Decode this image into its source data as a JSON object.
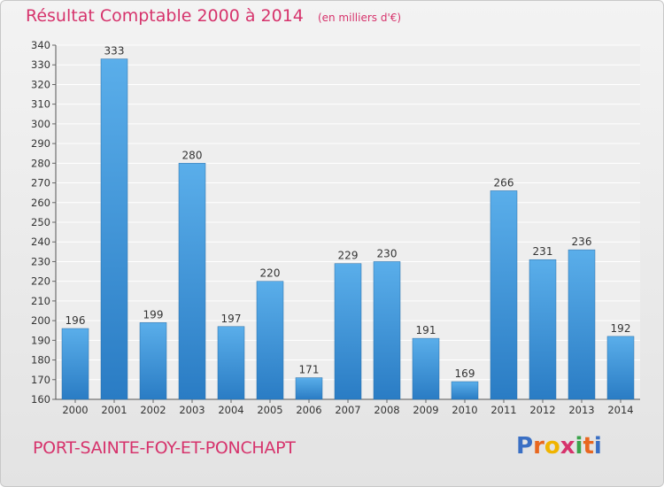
{
  "chart_data": {
    "type": "bar",
    "title": "Résultat Comptable 2000 à 2014",
    "subtitle": "(en milliers d'€)",
    "categories": [
      "2000",
      "2001",
      "2002",
      "2003",
      "2004",
      "2005",
      "2006",
      "2007",
      "2008",
      "2009",
      "2010",
      "2011",
      "2012",
      "2013",
      "2014"
    ],
    "values": [
      196,
      333,
      199,
      280,
      197,
      220,
      171,
      229,
      230,
      191,
      169,
      266,
      231,
      236,
      192
    ],
    "ylim": [
      160,
      340
    ],
    "yticks": [
      160,
      170,
      180,
      190,
      200,
      210,
      220,
      230,
      240,
      250,
      260,
      270,
      280,
      290,
      300,
      310,
      320,
      330,
      340
    ],
    "xlabel": "",
    "ylabel": "",
    "grid": true,
    "bar_color": "#3a8fd9"
  },
  "footer": {
    "commune": "PORT-SAINTE-FOY-ET-PONCHAPT",
    "brand_letters": [
      "P",
      "r",
      "o",
      "x",
      "i",
      "t",
      "i"
    ],
    "brand_colors": [
      "#3a6fc4",
      "#e8671f",
      "#f0b400",
      "#d6336c",
      "#3aa34a",
      "#e8671f",
      "#3a6fc4"
    ]
  }
}
